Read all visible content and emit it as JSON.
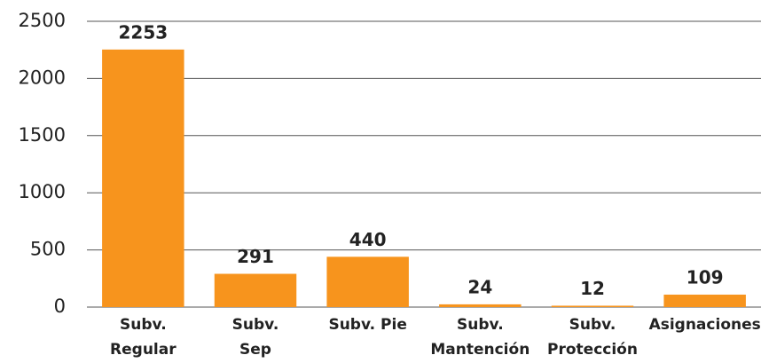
{
  "chart_data": {
    "type": "bar",
    "categories": [
      [
        "Subv.",
        "Regular"
      ],
      [
        "Subv.",
        "Sep"
      ],
      [
        "Subv. Pie"
      ],
      [
        "Subv.",
        "Mantención"
      ],
      [
        "Subv.",
        "Protección"
      ],
      [
        "Asignaciones"
      ]
    ],
    "values": [
      2253,
      291,
      440,
      24,
      12,
      109
    ],
    "color": "#f7941d",
    "ylim": [
      0,
      2500
    ],
    "yticks": [
      0,
      500,
      1000,
      1500,
      2000,
      2500
    ],
    "grid": true
  }
}
